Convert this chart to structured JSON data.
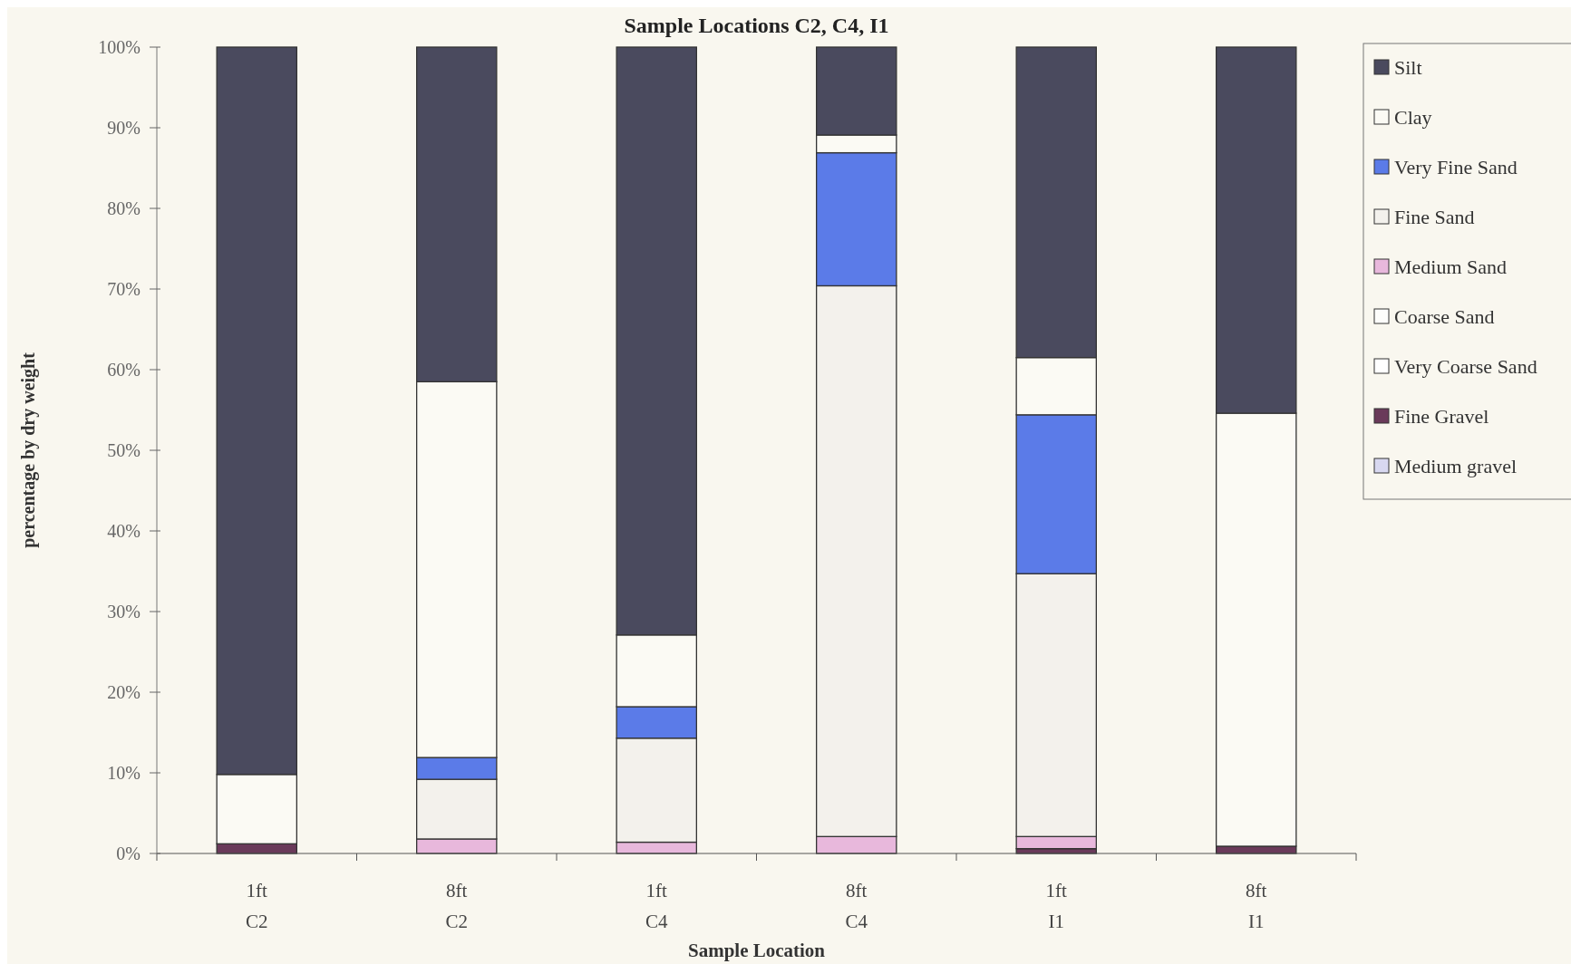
{
  "chart_data": {
    "type": "bar",
    "title": "Sample Locations C2, C4, I1",
    "xlabel": "Sample Location",
    "ylabel": "percentage by dry weight",
    "stacked": true,
    "legend": "right",
    "grid": false,
    "categories": [
      "1ft\nC2",
      "8ft\nC2",
      "1ft\nC4",
      "8ft\nC4",
      "1ft\nI1",
      "8ft\nI1"
    ],
    "ylim": [
      0,
      100
    ],
    "yticks": [
      {
        "value": 0,
        "label": "0%"
      },
      {
        "value": 10,
        "label": "10%"
      },
      {
        "value": 20,
        "label": "20%"
      },
      {
        "value": 30,
        "label": "30%"
      },
      {
        "value": 40,
        "label": "40%"
      },
      {
        "value": 50,
        "label": "50%"
      },
      {
        "value": 60,
        "label": "60%"
      },
      {
        "value": 70,
        "label": "70%"
      },
      {
        "value": 80,
        "label": "80%"
      },
      {
        "value": 90,
        "label": "90%"
      },
      {
        "value": 100,
        "label": "100%"
      }
    ],
    "series": [
      {
        "name": "Medium gravel",
        "color": "#d8d8f0",
        "values": [
          0,
          0,
          0,
          0,
          0,
          0
        ]
      },
      {
        "name": "Fine Gravel",
        "color": "#6a3a5a",
        "values": [
          1.2,
          0,
          0,
          0,
          0.6,
          0.9
        ]
      },
      {
        "name": "Very Coarse Sand",
        "color": "#ffffff",
        "values": [
          0,
          0,
          0,
          0,
          0,
          0
        ]
      },
      {
        "name": "Coarse Sand",
        "color": "#fdfdfb",
        "values": [
          0,
          0,
          0,
          0,
          0,
          0
        ]
      },
      {
        "name": "Medium Sand",
        "color": "#e8b8dc",
        "values": [
          0,
          1.8,
          1.4,
          2.1,
          1.5,
          0
        ]
      },
      {
        "name": "Fine Sand",
        "color": "#f3f1ec",
        "values": [
          0,
          7.4,
          12.9,
          68.3,
          32.6,
          0
        ]
      },
      {
        "name": "Very Fine Sand",
        "color": "#5b7be8",
        "values": [
          0,
          2.7,
          3.9,
          16.5,
          19.7,
          0
        ]
      },
      {
        "name": "Clay",
        "color": "#fbfaf4",
        "values": [
          8.6,
          46.6,
          8.9,
          2.2,
          7.1,
          53.7
        ]
      },
      {
        "name": "Silt",
        "color": "#4a4a5e",
        "values": [
          90.2,
          41.5,
          72.9,
          10.9,
          38.5,
          45.4
        ]
      }
    ]
  }
}
